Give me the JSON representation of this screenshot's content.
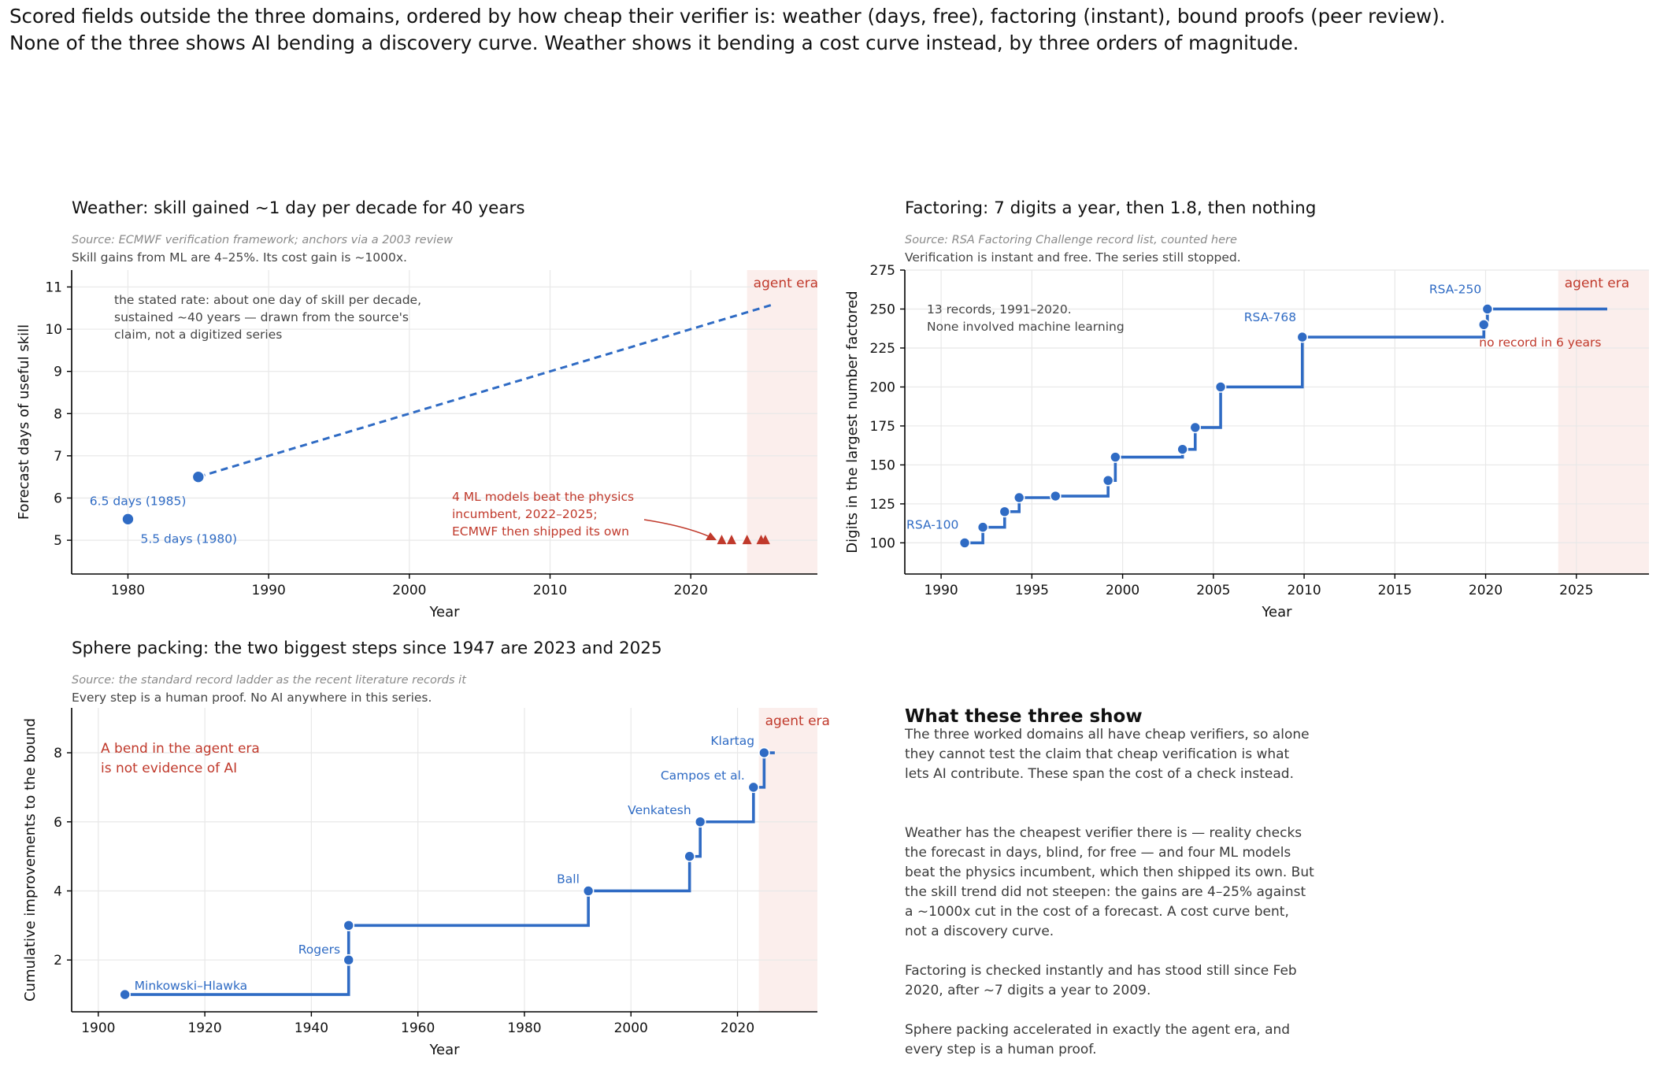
{
  "headline": {
    "line1": "Scored fields outside the three domains, ordered by how cheap their verifier is: weather (days, free), factoring (instant), bound proofs (peer review).",
    "line2": "None of the three shows AI bending a discovery curve. Weather shows it bending a cost curve instead, by three orders of magnitude."
  },
  "panels": {
    "weather": {
      "title": "Weather: skill gained ~1 day per decade for 40 years",
      "source": "Source: ECMWF verification framework; anchors via a 2003 review",
      "subtitle": "Skill gains from ML are 4–25%. Its cost gain is ~1000x."
    },
    "factoring": {
      "title": "Factoring: 7 digits a year, then 1.8, then nothing",
      "source": "Source: RSA Factoring Challenge record list, counted here",
      "subtitle": "Verification is instant and free. The series still stopped."
    },
    "sphere": {
      "title": "Sphere packing: the two biggest steps since 1947 are 2023 and 2025",
      "source": "Source: the standard record ladder as the recent literature records it",
      "subtitle": "Every step is a human proof. No AI anywhere in this series."
    }
  },
  "takeaway": {
    "title": "What these three show",
    "paragraphs": [
      "The three worked domains all have cheap verifiers, so alone they cannot test the claim that cheap verification is what lets AI contribute. These span the cost of a check instead.",
      "Weather has the cheapest verifier there is — reality checks the forecast in days, blind, for free — and four ML models beat the physics incumbent, which then shipped its own. But the skill trend did not steepen: the gains are 4–25% against a ~1000x cut in the cost of a forecast. A cost curve bent, not a discovery curve.",
      "Factoring is checked instantly and has stood still since Feb 2020, after ~7 digits a year to 2009.",
      "Sphere packing accelerated in exactly the agent era, and every step is a human proof."
    ]
  },
  "colors": {
    "series": "#2f6bc4",
    "accent": "#c0392b",
    "shade": "#fbeeec",
    "grid": "#e8e8e8"
  },
  "chart_data": [
    {
      "id": "weather",
      "type": "scatter",
      "xlabel": "Year",
      "ylabel": "Forecast days of useful skill",
      "xlim": [
        1976,
        2029
      ],
      "ylim": [
        4.2,
        11.4
      ],
      "xticks": [
        1980,
        1990,
        2000,
        2010,
        2020
      ],
      "yticks": [
        5,
        6,
        7,
        8,
        9,
        10,
        11
      ],
      "grid": true,
      "points": [
        {
          "x": 1980,
          "y": 5.5,
          "label": "5.5 days (1980)"
        },
        {
          "x": 1985,
          "y": 6.5,
          "label": "6.5 days (1985)"
        }
      ],
      "trend": {
        "style": "dashed",
        "x": [
          1985,
          2026
        ],
        "y": [
          6.5,
          10.6
        ]
      },
      "ml_models": {
        "marker": "triangle",
        "x": [
          2022.2,
          2022.9,
          2024,
          2025,
          2025.3
        ],
        "y": [
          5,
          5,
          5,
          5,
          5
        ]
      },
      "agent_era": {
        "start": 2024,
        "label": "agent era"
      },
      "annotations": {
        "rate_note": [
          "the stated rate: about one day of skill per decade,",
          "sustained ~40 years — drawn from the source's",
          "claim, not a digitized series"
        ],
        "ml_note": [
          "4 ML models beat the physics",
          "incumbent, 2022–2025;",
          "ECMWF then shipped its own"
        ]
      }
    },
    {
      "id": "factoring",
      "type": "line",
      "step": true,
      "xlabel": "Year",
      "ylabel": "Digits in the largest number factored",
      "xlim": [
        1988,
        2029
      ],
      "ylim": [
        80,
        275
      ],
      "xticks": [
        1990,
        1995,
        2000,
        2005,
        2010,
        2015,
        2020,
        2025
      ],
      "yticks": [
        100,
        125,
        150,
        175,
        200,
        225,
        250,
        275
      ],
      "grid": true,
      "x": [
        1991.3,
        1992.3,
        1993.5,
        1994.3,
        1996.3,
        1999.2,
        1999.6,
        2003.3,
        2004.0,
        2005.4,
        2009.9,
        2019.9,
        2020.1
      ],
      "y": [
        100,
        110,
        120,
        129,
        130,
        140,
        155,
        160,
        174,
        200,
        232,
        240,
        250
      ],
      "extend_to": 2026.7,
      "point_labels": {
        "RSA-100": 100,
        "RSA-768": 232,
        "RSA-250": 250
      },
      "agent_era": {
        "start": 2024,
        "label": "agent era"
      },
      "annotations": {
        "records_note": [
          "13 records, 1991–2020.",
          "None involved machine learning"
        ],
        "stall_note": "no record in 6 years"
      }
    },
    {
      "id": "sphere",
      "type": "line",
      "step": true,
      "xlabel": "Year",
      "ylabel": "Cumulative improvements to the bound",
      "xlim": [
        1895,
        2035
      ],
      "ylim": [
        0.5,
        9.3
      ],
      "xticks": [
        1900,
        1920,
        1940,
        1960,
        1980,
        2000,
        2020
      ],
      "yticks": [
        2,
        4,
        6,
        8
      ],
      "grid": true,
      "x": [
        1905,
        1947,
        1947,
        1992,
        2011,
        2013,
        2023,
        2025
      ],
      "y": [
        1,
        2,
        3,
        4,
        5,
        6,
        7,
        8
      ],
      "extend_to": 2027,
      "point_labels": {
        "Minkowski–Hlawka": 1,
        "Rogers": 2,
        "Ball": 4,
        "Venkatesh": 6,
        "Campos et al.": 7,
        "Klartag": 8
      },
      "agent_era": {
        "start": 2024,
        "label": "agent era"
      },
      "annotations": {
        "bend_note": [
          "A bend in the agent era",
          "is not evidence of AI"
        ]
      }
    }
  ]
}
